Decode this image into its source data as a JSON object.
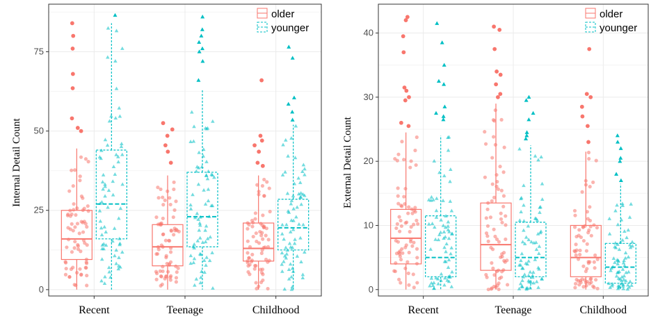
{
  "colors": {
    "older": "#F8766D",
    "younger": "#00BFC4",
    "grid": "#ebebeb",
    "axis": "#333333"
  },
  "chart_data": [
    {
      "type": "box",
      "ylabel": "Internal Detail Count",
      "categories": [
        "Recent",
        "Teenage",
        "Childhood"
      ],
      "ylim": [
        -2,
        90
      ],
      "yticks": [
        0,
        25,
        50,
        75
      ],
      "grid": true,
      "legend_position": "top-right",
      "series": [
        {
          "name": "older",
          "box": [
            {
              "min": 0,
              "q1": 9.5,
              "median": 16,
              "q3": 25,
              "max": 44.5,
              "outliers": [
                84,
                80,
                76,
                68,
                63.5,
                54,
                51,
                50
              ]
            },
            {
              "min": 0,
              "q1": 7.5,
              "median": 13.5,
              "q3": 20.5,
              "max": 36,
              "outliers": [
                52.5,
                50.5,
                48.5,
                45.5,
                43.5,
                40
              ]
            },
            {
              "min": 0,
              "q1": 9,
              "median": 13,
              "q3": 21,
              "max": 36,
              "outliers": [
                66,
                48.5,
                47,
                45.5,
                43.5,
                40,
                39
              ]
            }
          ]
        },
        {
          "name": "younger",
          "box": [
            {
              "min": 0,
              "q1": 16,
              "median": 27,
              "q3": 44,
              "max": 84,
              "outliers": [
                86.5
              ]
            },
            {
              "min": 0,
              "q1": 13.5,
              "median": 23,
              "q3": 37,
              "max": 63,
              "outliers": [
                86,
                82,
                80,
                78,
                76,
                75,
                72,
                66
              ]
            },
            {
              "min": 0,
              "q1": 12.5,
              "median": 19.5,
              "q3": 28.5,
              "max": 52,
              "outliers": [
                76.5,
                73,
                60.5,
                58.5,
                56,
                53.5
              ]
            }
          ]
        }
      ]
    },
    {
      "type": "box",
      "ylabel": "External Detail Count",
      "categories": [
        "Recent",
        "Teenage",
        "Childhood"
      ],
      "ylim": [
        -1,
        44.5
      ],
      "yticks": [
        0,
        10,
        20,
        30,
        40
      ],
      "grid": true,
      "legend_position": "top-right",
      "series": [
        {
          "name": "older",
          "box": [
            {
              "min": 0,
              "q1": 4,
              "median": 8,
              "q3": 12.5,
              "max": 24.5,
              "outliers": [
                42.5,
                42,
                39.5,
                37,
                31.5,
                31,
                30,
                29.5,
                26,
                25.5
              ]
            },
            {
              "min": 0,
              "q1": 3,
              "median": 7,
              "q3": 13.5,
              "max": 29,
              "outliers": [
                41,
                40.5,
                37.5,
                34,
                33.5,
                32,
                30.5,
                30
              ]
            },
            {
              "min": 0,
              "q1": 2,
              "median": 5,
              "q3": 10,
              "max": 21.5,
              "outliers": [
                37.5,
                30.5,
                30,
                28.5,
                27,
                25.5,
                23
              ]
            }
          ]
        },
        {
          "name": "younger",
          "box": [
            {
              "min": 0,
              "q1": 2,
              "median": 5,
              "q3": 11.5,
              "max": 24,
              "outliers": [
                41.5,
                38.5,
                35,
                32.5,
                32,
                28.5,
                27.5,
                27,
                26.5
              ]
            },
            {
              "min": 0,
              "q1": 2,
              "median": 5,
              "q3": 10.5,
              "max": 22.5,
              "outliers": [
                30,
                29.5,
                27.5,
                26.5,
                24.5,
                24,
                23.5
              ]
            },
            {
              "min": 0,
              "q1": 1,
              "median": 3.5,
              "q3": 7.2,
              "max": 16.5,
              "outliers": [
                24,
                23,
                22,
                20.5,
                20,
                18,
                17
              ]
            }
          ]
        }
      ]
    }
  ]
}
